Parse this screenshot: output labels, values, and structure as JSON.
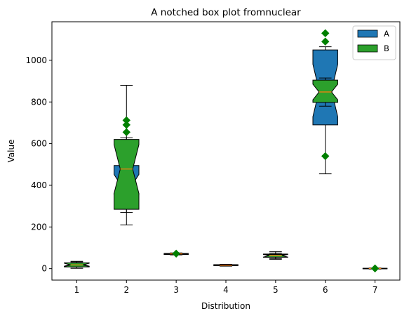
{
  "chart_data": {
    "type": "box",
    "title": "A notched box plot fromnuclear",
    "xlabel": "Distribution",
    "ylabel": "Value",
    "ylim": [
      -55,
      1185
    ],
    "yticks": [
      0,
      200,
      400,
      600,
      800,
      1000
    ],
    "xticks": [
      "1",
      "2",
      "3",
      "4",
      "5",
      "6",
      "7"
    ],
    "grid": false,
    "legend_position": "top-right",
    "colors": {
      "A": "#1f77b4",
      "B": "#2ca02c",
      "median": "#ff7f0e",
      "flier": "#008000"
    },
    "series": [
      {
        "name": "A",
        "color": "#1f77b4",
        "boxes": [
          {
            "position": 1,
            "whislo": 2,
            "q1": 10,
            "med": 20,
            "q3": 27,
            "whishi": 32,
            "fliers": []
          },
          {
            "position": 2,
            "whislo": 270,
            "q1": 360,
            "med": 405,
            "q3": 495,
            "whishi": 880,
            "fliers": []
          },
          {
            "position": 3,
            "whislo": 66,
            "q1": 68,
            "med": 70,
            "q3": 72,
            "whishi": 75,
            "fliers": []
          },
          {
            "position": 4,
            "whislo": 12,
            "q1": 15,
            "med": 17,
            "q3": 19,
            "whishi": 21,
            "fliers": []
          },
          {
            "position": 5,
            "whislo": 45,
            "q1": 55,
            "med": 62,
            "q3": 70,
            "whishi": 82,
            "fliers": []
          },
          {
            "position": 6,
            "whislo": 455,
            "q1": 690,
            "med": 855,
            "q3": 1050,
            "whishi": 1065,
            "fliers": []
          },
          {
            "position": 7,
            "whislo": -2,
            "q1": -1,
            "med": 0,
            "q3": 1,
            "whishi": 2,
            "fliers": []
          }
        ]
      },
      {
        "name": "B",
        "color": "#2ca02c",
        "boxes": [
          {
            "position": 1,
            "whislo": 2,
            "q1": 8,
            "med": 18,
            "q3": 28,
            "whishi": 35,
            "fliers": []
          },
          {
            "position": 2,
            "whislo": 210,
            "q1": 285,
            "med": 478,
            "q3": 620,
            "whishi": 628,
            "fliers": [
              655,
              690,
              712
            ]
          },
          {
            "position": 3,
            "whislo": 67,
            "q1": 69,
            "med": 71,
            "q3": 73,
            "whishi": 75,
            "fliers": [
              72
            ]
          },
          {
            "position": 4,
            "whislo": 13,
            "q1": 15,
            "med": 16,
            "q3": 18,
            "whishi": 20,
            "fliers": []
          },
          {
            "position": 5,
            "whislo": 48,
            "q1": 55,
            "med": 63,
            "q3": 68,
            "whishi": 75,
            "fliers": []
          },
          {
            "position": 6,
            "whislo": 780,
            "q1": 798,
            "med": 848,
            "q3": 905,
            "whishi": 915,
            "fliers": [
              540,
              1090,
              1130
            ]
          },
          {
            "position": 7,
            "whislo": -1,
            "q1": 0,
            "med": 1,
            "q3": 2,
            "whishi": 3,
            "fliers": [
              1
            ]
          }
        ]
      }
    ]
  }
}
